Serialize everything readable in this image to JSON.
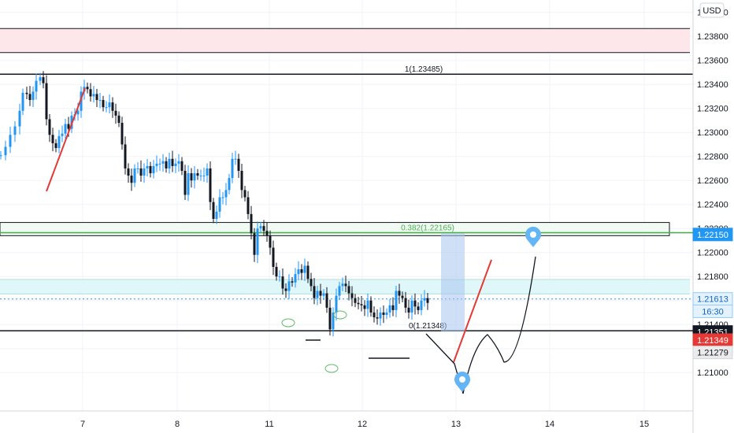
{
  "currency_button": "USD",
  "colors": {
    "up": "#2196f3",
    "down": "#131722",
    "fib_green": "#4caf50",
    "red": "#e53935",
    "pink_zone": "#fde7ea",
    "cyan_zone": "#e0f7fa",
    "blue_box": "#a8c4ef",
    "marker": "#64b5f6",
    "grid": "#f0f3fa"
  },
  "chart_data": {
    "type": "candlestick",
    "x_ticks": [
      "7",
      "8",
      "11",
      "12",
      "13",
      "14",
      "15"
    ],
    "y_ticks": [
      "1.24000",
      "1.23800",
      "1.23600",
      "1.23400",
      "1.23200",
      "1.23000",
      "1.22800",
      "1.22600",
      "1.22400",
      "1.22200",
      "1.22000",
      "1.21800",
      "1.21600",
      "1.21400",
      "1.21200",
      "1.21000"
    ],
    "ylim": [
      1.2097,
      1.2408
    ],
    "grid": true,
    "candles_close_path": [
      [
        0,
        1.2281
      ],
      [
        6,
        1.2288
      ],
      [
        12,
        1.2298
      ],
      [
        18,
        1.2305
      ],
      [
        24,
        1.2318
      ],
      [
        28,
        1.2333
      ],
      [
        33,
        1.2332
      ],
      [
        37,
        1.2327
      ],
      [
        41,
        1.2334
      ],
      [
        45,
        1.2343
      ],
      [
        50,
        1.2346
      ],
      [
        54,
        1.2341
      ],
      [
        58,
        1.2311
      ],
      [
        62,
        1.2298
      ],
      [
        66,
        1.2291
      ],
      [
        70,
        1.2287
      ],
      [
        74,
        1.2297
      ],
      [
        78,
        1.2299
      ],
      [
        82,
        1.2307
      ],
      [
        86,
        1.2303
      ],
      [
        90,
        1.2314
      ],
      [
        94,
        1.2315
      ],
      [
        98,
        1.2318
      ],
      [
        102,
        1.2334
      ],
      [
        106,
        1.2338
      ],
      [
        110,
        1.2336
      ],
      [
        114,
        1.233
      ],
      [
        118,
        1.2332
      ],
      [
        122,
        1.2327
      ],
      [
        126,
        1.2327
      ],
      [
        130,
        1.2321
      ],
      [
        134,
        1.2321
      ],
      [
        138,
        1.2325
      ],
      [
        142,
        1.2318
      ],
      [
        146,
        1.2314
      ],
      [
        150,
        1.2308
      ],
      [
        154,
        1.229
      ],
      [
        158,
        1.227
      ],
      [
        162,
        1.2264
      ],
      [
        166,
        1.2258
      ],
      [
        170,
        1.227
      ],
      [
        174,
        1.227
      ],
      [
        178,
        1.2264
      ],
      [
        182,
        1.227
      ],
      [
        186,
        1.2272
      ],
      [
        190,
        1.2266
      ],
      [
        194,
        1.2272
      ],
      [
        198,
        1.2274
      ],
      [
        202,
        1.2274
      ],
      [
        206,
        1.2276
      ],
      [
        210,
        1.227
      ],
      [
        214,
        1.2278
      ],
      [
        218,
        1.2272
      ],
      [
        222,
        1.2274
      ],
      [
        226,
        1.2276
      ],
      [
        230,
        1.2268
      ],
      [
        234,
        1.2248
      ],
      [
        238,
        1.2266
      ],
      [
        242,
        1.226
      ],
      [
        246,
        1.2266
      ],
      [
        250,
        1.2264
      ],
      [
        254,
        1.2264
      ],
      [
        258,
        1.2264
      ],
      [
        262,
        1.227
      ],
      [
        266,
        1.2242
      ],
      [
        270,
        1.2228
      ],
      [
        274,
        1.2234
      ],
      [
        278,
        1.2246
      ],
      [
        282,
        1.2246
      ],
      [
        286,
        1.2252
      ],
      [
        290,
        1.2262
      ],
      [
        294,
        1.2278
      ],
      [
        298,
        1.2278
      ],
      [
        302,
        1.2268
      ],
      [
        306,
        1.2252
      ],
      [
        310,
        1.2246
      ],
      [
        314,
        1.2232
      ],
      [
        318,
        1.2216
      ],
      [
        322,
        1.2198
      ],
      [
        326,
        1.222
      ],
      [
        330,
        1.2222
      ],
      [
        334,
        1.2218
      ],
      [
        338,
        1.2214
      ],
      [
        342,
        1.2204
      ],
      [
        346,
        1.2188
      ],
      [
        350,
        1.218
      ],
      [
        354,
        1.218
      ],
      [
        358,
        1.217
      ],
      [
        362,
        1.2168
      ],
      [
        366,
        1.2176
      ],
      [
        370,
        1.2175
      ],
      [
        374,
        1.2182
      ],
      [
        378,
        1.2186
      ],
      [
        382,
        1.2183
      ],
      [
        386,
        1.2189
      ],
      [
        390,
        1.2178
      ],
      [
        394,
        1.2172
      ],
      [
        398,
        1.2162
      ],
      [
        402,
        1.2168
      ],
      [
        406,
        1.2164
      ],
      [
        410,
        1.2166
      ],
      [
        414,
        1.2154
      ],
      [
        418,
        1.2136
      ],
      [
        422,
        1.215
      ],
      [
        426,
        1.2164
      ],
      [
        430,
        1.2172
      ],
      [
        434,
        1.2174
      ],
      [
        438,
        1.2172
      ],
      [
        442,
        1.2166
      ],
      [
        446,
        1.2162
      ],
      [
        450,
        1.2158
      ],
      [
        454,
        1.2157
      ],
      [
        458,
        1.2156
      ],
      [
        462,
        1.2153
      ],
      [
        466,
        1.216
      ],
      [
        470,
        1.215
      ],
      [
        474,
        1.2146
      ],
      [
        478,
        1.2145
      ],
      [
        482,
        1.215
      ],
      [
        486,
        1.2148
      ],
      [
        490,
        1.215
      ],
      [
        494,
        1.2156
      ],
      [
        498,
        1.2152
      ],
      [
        502,
        1.2168
      ],
      [
        506,
        1.2164
      ],
      [
        510,
        1.2162
      ],
      [
        514,
        1.2154
      ],
      [
        518,
        1.215
      ],
      [
        522,
        1.216
      ],
      [
        526,
        1.2155
      ],
      [
        530,
        1.2152
      ],
      [
        534,
        1.216
      ],
      [
        538,
        1.2162
      ],
      [
        542,
        1.2158
      ]
    ],
    "horizontal_levels": [
      {
        "price": 1.23485,
        "label": "1(1.23485)",
        "color": "#131722"
      },
      {
        "price": 1.22165,
        "label": "0.382(1.22165)",
        "color": "#4caf50"
      },
      {
        "price": 1.21348,
        "label": "0(1.21348)",
        "color": "#131722"
      }
    ],
    "zones": [
      {
        "kind": "pink",
        "from": 1.23665,
        "to": 1.23865
      },
      {
        "kind": "cyan",
        "from": 1.21655,
        "to": 1.21775
      },
      {
        "kind": "outlined",
        "from": 1.2214,
        "to": 1.2225
      }
    ],
    "price_labels": [
      {
        "text": "1.22150",
        "price": 1.2215,
        "style": "blue"
      },
      {
        "text": "1.21613",
        "price": 1.21613,
        "style": "blue-outline"
      },
      {
        "text": "16:30",
        "price": 1.2151,
        "style": "blue-outline"
      },
      {
        "text": "1.21351",
        "price": 1.21351,
        "style": "dark"
      },
      {
        "text": "1.21349",
        "price": 1.21349,
        "style": "red"
      },
      {
        "text": "1.21279",
        "price": 1.21279,
        "style": "gray"
      }
    ]
  }
}
